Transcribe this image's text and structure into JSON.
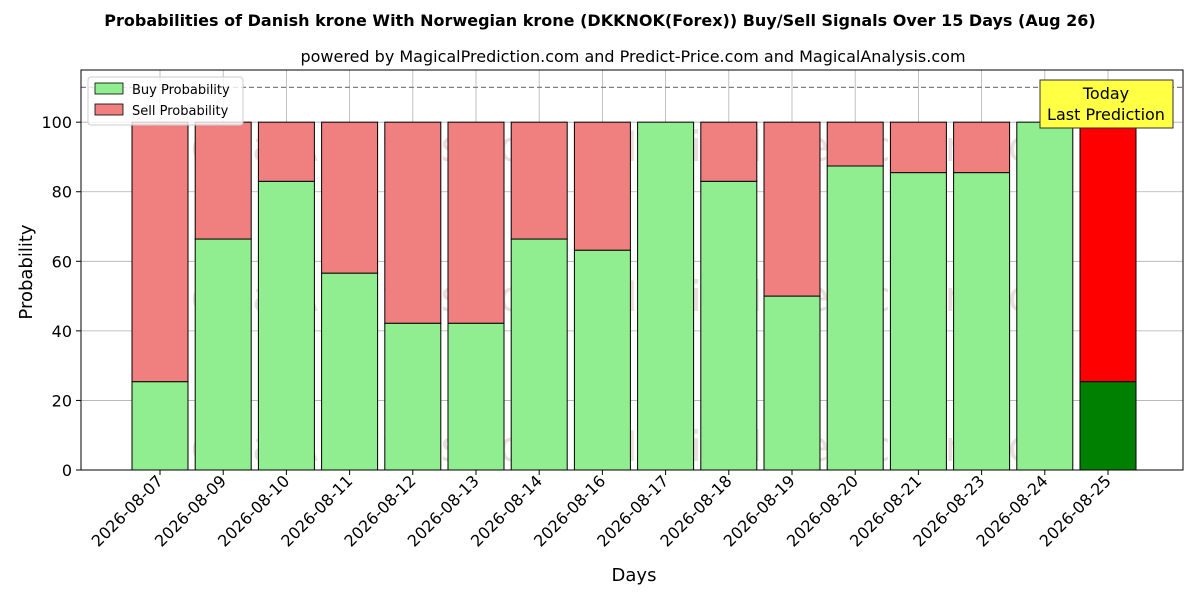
{
  "chart_data": {
    "type": "bar",
    "stacked": true,
    "title": "Probabilities of Danish krone With Norwegian krone (DKKNOK(Forex)) Buy/Sell Signals Over 15 Days (Aug 26)",
    "subtitle": "powered by MagicalPrediction.com and Predict-Price.com and MagicalAnalysis.com",
    "xlabel": "Days",
    "ylabel": "Probability",
    "ylim": [
      0,
      115
    ],
    "yticks": [
      0,
      20,
      40,
      60,
      80,
      100
    ],
    "reference_line": 110,
    "grid": true,
    "legend_position": "top-left",
    "categories": [
      "2026-08-07",
      "2026-08-09",
      "2026-08-10",
      "2026-08-11",
      "2026-08-12",
      "2026-08-13",
      "2026-08-14",
      "2026-08-16",
      "2026-08-17",
      "2026-08-18",
      "2026-08-19",
      "2026-08-20",
      "2026-08-21",
      "2026-08-23",
      "2026-08-24",
      "2026-08-25"
    ],
    "series": [
      {
        "name": "Buy Probability",
        "values": [
          25.4,
          66.4,
          83.0,
          56.6,
          42.2,
          42.2,
          66.4,
          63.2,
          100,
          83.0,
          50.0,
          87.4,
          85.5,
          85.5,
          100,
          25.4
        ]
      },
      {
        "name": "Sell Probability",
        "values": [
          74.6,
          33.6,
          17.0,
          43.4,
          57.8,
          57.8,
          33.6,
          36.8,
          0,
          17.0,
          50.0,
          12.6,
          14.5,
          14.5,
          0,
          74.6
        ]
      }
    ],
    "annotation": {
      "line1": "Today",
      "line2": "Last Prediction"
    },
    "watermarks": [
      "MagicalAnalysis.com",
      "MagicalPrediction.com"
    ],
    "colors": {
      "buy": "#90ee90",
      "sell": "#f08080",
      "buy_highlight": "#008000",
      "sell_highlight": "#ff0000",
      "annotation_bg": "#ffff44"
    }
  }
}
